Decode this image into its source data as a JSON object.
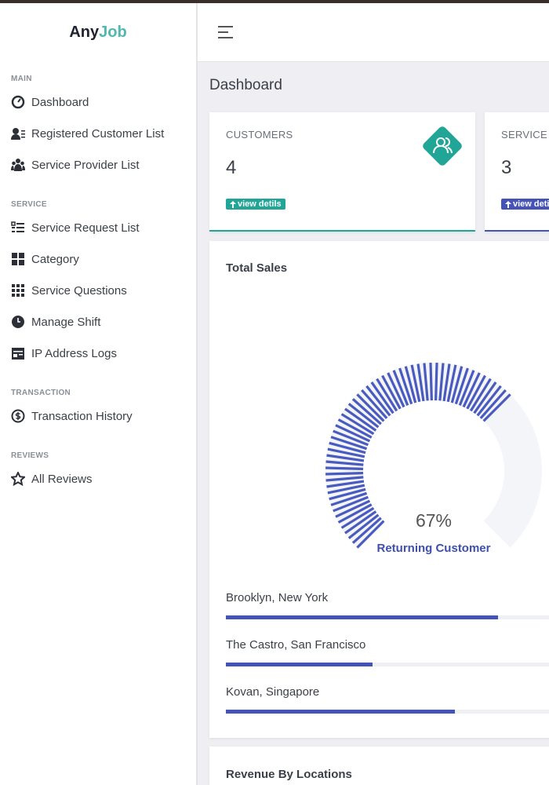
{
  "logo": {
    "part1": "Any",
    "part2": "Job"
  },
  "sidebar": {
    "sections": [
      {
        "title": "MAIN",
        "items": [
          "Dashboard",
          "Registered Customer List",
          "Service Provider List"
        ]
      },
      {
        "title": "SERVICE",
        "items": [
          "Service Request List",
          "Category",
          "Service Questions",
          "Manage Shift",
          "IP Address Logs"
        ]
      },
      {
        "title": "TRANSACTION",
        "items": [
          "Transaction History"
        ]
      },
      {
        "title": "REVIEWS",
        "items": [
          "All Reviews"
        ]
      }
    ]
  },
  "page_title": "Dashboard",
  "stats": [
    {
      "label": "CUSTOMERS",
      "value": 4,
      "link": "view detils"
    },
    {
      "label": "SERVICE PROVIDERS",
      "value": 3,
      "link": "view detils"
    }
  ],
  "total_sales": {
    "title": "Total Sales",
    "gauge": {
      "value": 67,
      "value_label": "67%",
      "caption": "Returning Customer"
    },
    "locations": [
      {
        "name": "Brooklyn, New York",
        "value": 63
      },
      {
        "name": "The Castro, San Francisco",
        "value": 34
      },
      {
        "name": "Kovan, Singapore",
        "value": 53
      }
    ]
  },
  "revenue": {
    "title": "Revenue By Locations"
  }
}
